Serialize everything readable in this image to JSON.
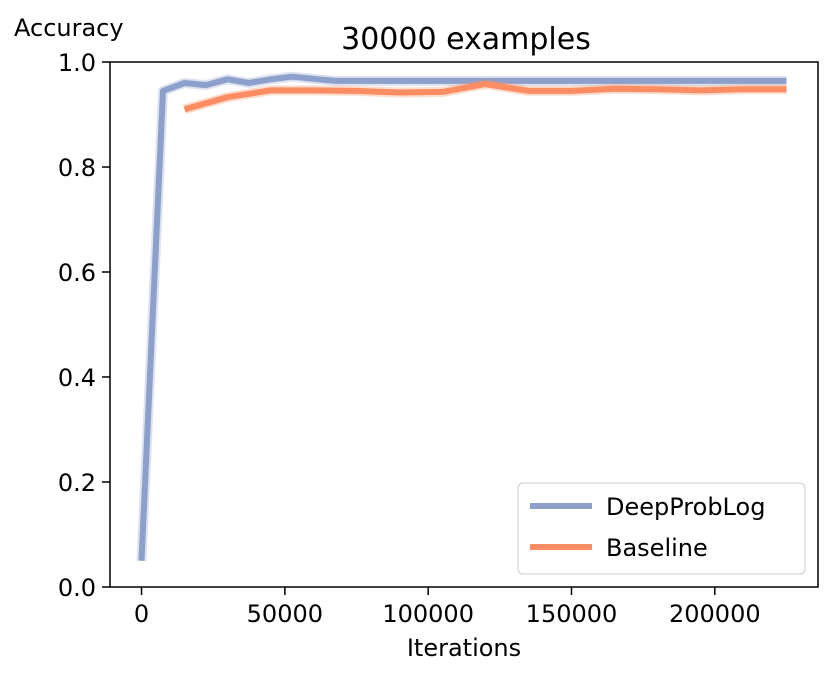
{
  "chart_data": {
    "type": "line",
    "title": "30000 examples",
    "xlabel": "Iterations",
    "ylabel": "Accuracy",
    "xlim": [
      -11000,
      236000
    ],
    "ylim": [
      0.0,
      1.0
    ],
    "x_ticks": [
      0,
      50000,
      100000,
      150000,
      200000
    ],
    "x_tick_labels": [
      "0",
      "50000",
      "100000",
      "150000",
      "200000"
    ],
    "y_ticks": [
      0.0,
      0.2,
      0.4,
      0.6,
      0.8,
      1.0
    ],
    "y_tick_labels": [
      "0.0",
      "0.2",
      "0.4",
      "0.6",
      "0.8",
      "1.0"
    ],
    "grid": false,
    "legend_position": "lower-right",
    "series": [
      {
        "name": "DeepProbLog",
        "color": "#8da0cb",
        "x": [
          0,
          7500,
          15000,
          22500,
          30000,
          37500,
          45000,
          52500,
          60000,
          67500,
          75000,
          82500,
          90000,
          97500,
          105000,
          112500,
          120000,
          127500,
          135000,
          142500,
          150000,
          157500,
          165000,
          172500,
          180000,
          187500,
          195000,
          202500,
          210000,
          217500,
          225000
        ],
        "y": [
          0.05,
          0.945,
          0.96,
          0.956,
          0.967,
          0.96,
          0.967,
          0.972,
          0.968,
          0.964,
          0.964,
          0.964,
          0.964,
          0.964,
          0.964,
          0.964,
          0.964,
          0.964,
          0.964,
          0.964,
          0.964,
          0.964,
          0.964,
          0.964,
          0.964,
          0.964,
          0.964,
          0.964,
          0.964,
          0.964,
          0.964
        ]
      },
      {
        "name": "Baseline",
        "color": "#fc8d62",
        "x": [
          15000,
          30000,
          45000,
          60000,
          75000,
          90000,
          105000,
          120000,
          135000,
          150000,
          165000,
          180000,
          195000,
          210000,
          225000
        ],
        "y": [
          0.91,
          0.933,
          0.946,
          0.946,
          0.945,
          0.942,
          0.943,
          0.958,
          0.945,
          0.945,
          0.949,
          0.948,
          0.946,
          0.948,
          0.948
        ]
      }
    ]
  }
}
